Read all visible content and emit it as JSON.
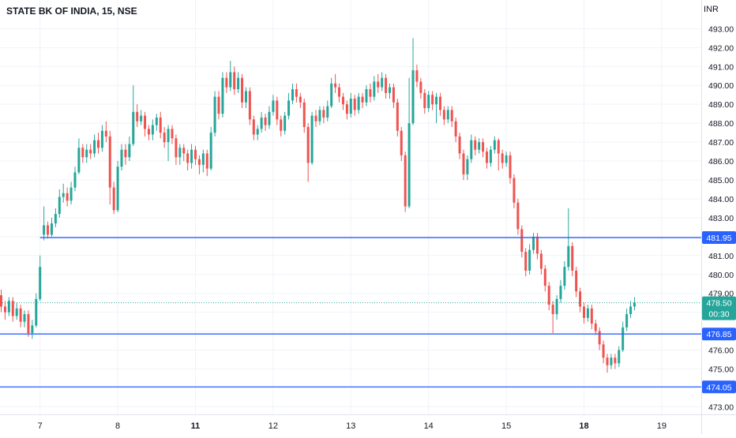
{
  "header": {
    "title": "STATE BK OF INDIA, 15, NSE",
    "currency": "INR"
  },
  "colors": {
    "up": "#26a69a",
    "down": "#ef5350",
    "level": "#2962ff",
    "last": "#26a69a"
  },
  "chart_data": {
    "type": "candlestick",
    "title": "STATE BK OF INDIA, 15, NSE",
    "ylabel": "INR",
    "ylim": [
      472.6,
      493.6
    ],
    "yticks": [
      473.0,
      474.0,
      475.0,
      476.0,
      477.0,
      478.0,
      479.0,
      480.0,
      481.0,
      482.0,
      483.0,
      484.0,
      485.0,
      486.0,
      487.0,
      488.0,
      489.0,
      490.0,
      491.0,
      492.0,
      493.0
    ],
    "xticks": [
      {
        "label": "7",
        "bar": 10,
        "bold": false
      },
      {
        "label": "8",
        "bar": 30,
        "bold": false
      },
      {
        "label": "11",
        "bar": 50,
        "bold": true
      },
      {
        "label": "12",
        "bar": 70,
        "bold": false
      },
      {
        "label": "13",
        "bar": 90,
        "bold": false
      },
      {
        "label": "14",
        "bar": 110,
        "bold": false
      },
      {
        "label": "15",
        "bar": 130,
        "bold": false
      },
      {
        "label": "18",
        "bar": 150,
        "bold": true
      },
      {
        "label": "19",
        "bar": 170,
        "bold": false
      }
    ],
    "levels": [
      {
        "value": 481.95,
        "label": "481.95",
        "x_start_bar": 10
      },
      {
        "value": 476.85,
        "label": "476.85",
        "x_start_bar": 0
      },
      {
        "value": 474.05,
        "label": "474.05",
        "x_start_bar": 0
      }
    ],
    "last_price": {
      "value": 478.5,
      "label": "478.50",
      "countdown": "00:30"
    },
    "candles": [
      [
        478.9,
        478.3,
        479.2,
        478.0
      ],
      [
        478.3,
        478.0,
        478.6,
        477.6
      ],
      [
        478.0,
        478.6,
        478.8,
        477.8
      ],
      [
        478.6,
        477.8,
        478.8,
        477.5
      ],
      [
        477.8,
        478.2,
        478.5,
        477.6
      ],
      [
        478.2,
        477.5,
        478.4,
        477.2
      ],
      [
        477.5,
        477.9,
        478.1,
        477.2
      ],
      [
        477.9,
        476.9,
        478.1,
        476.7
      ],
      [
        476.9,
        477.3,
        477.6,
        476.6
      ],
      [
        477.3,
        478.7,
        479.0,
        477.2
      ],
      [
        478.7,
        480.4,
        481.0,
        478.6
      ],
      [
        482.1,
        482.6,
        483.6,
        481.8
      ],
      [
        482.6,
        482.1,
        482.8,
        481.9
      ],
      [
        482.1,
        482.7,
        483.0,
        482.0
      ],
      [
        482.7,
        483.2,
        483.5,
        482.5
      ],
      [
        483.2,
        484.1,
        484.5,
        483.0
      ],
      [
        484.1,
        484.3,
        484.8,
        483.8
      ],
      [
        484.3,
        483.9,
        484.6,
        483.6
      ],
      [
        483.9,
        484.6,
        484.9,
        483.7
      ],
      [
        484.6,
        485.4,
        485.7,
        484.4
      ],
      [
        485.4,
        486.7,
        487.2,
        485.3
      ],
      [
        486.7,
        486.2,
        486.9,
        485.9
      ],
      [
        486.2,
        486.6,
        486.9,
        485.9
      ],
      [
        486.6,
        486.4,
        486.9,
        486.1
      ],
      [
        486.4,
        487.1,
        487.4,
        486.2
      ],
      [
        487.1,
        486.7,
        487.5,
        486.4
      ],
      [
        486.7,
        487.6,
        487.9,
        486.5
      ],
      [
        487.6,
        487.3,
        488.1,
        487.0
      ],
      [
        487.3,
        484.6,
        487.6,
        483.7
      ],
      [
        484.6,
        483.4,
        484.9,
        483.2
      ],
      [
        483.4,
        485.7,
        486.0,
        483.3
      ],
      [
        485.7,
        486.6,
        486.9,
        485.5
      ],
      [
        486.6,
        486.2,
        486.9,
        485.8
      ],
      [
        486.2,
        486.9,
        487.3,
        486.0
      ],
      [
        486.9,
        488.6,
        490.0,
        486.8
      ],
      [
        488.6,
        488.1,
        489.0,
        487.8
      ],
      [
        488.1,
        488.4,
        488.7,
        487.9
      ],
      [
        488.4,
        487.7,
        488.6,
        487.3
      ],
      [
        487.7,
        487.4,
        487.9,
        487.1
      ],
      [
        487.4,
        487.9,
        488.2,
        487.1
      ],
      [
        487.9,
        488.3,
        488.5,
        487.6
      ],
      [
        488.3,
        487.5,
        488.6,
        487.2
      ],
      [
        487.5,
        487.0,
        487.8,
        486.7
      ],
      [
        487.0,
        487.7,
        487.9,
        486.0
      ],
      [
        487.7,
        487.2,
        487.9,
        486.9
      ],
      [
        487.2,
        486.2,
        487.4,
        485.8
      ],
      [
        486.2,
        486.7,
        486.9,
        485.8
      ],
      [
        486.7,
        486.4,
        486.9,
        486.0
      ],
      [
        486.4,
        485.9,
        486.6,
        485.5
      ],
      [
        485.9,
        486.6,
        486.9,
        485.6
      ],
      [
        486.6,
        486.1,
        486.8,
        485.8
      ],
      [
        486.1,
        485.8,
        486.3,
        485.3
      ],
      [
        485.8,
        486.4,
        486.6,
        485.4
      ],
      [
        486.4,
        485.6,
        486.6,
        485.2
      ],
      [
        485.6,
        487.5,
        487.8,
        485.5
      ],
      [
        487.5,
        489.4,
        489.7,
        487.3
      ],
      [
        489.4,
        488.5,
        489.7,
        488.2
      ],
      [
        488.5,
        490.4,
        490.7,
        488.3
      ],
      [
        490.4,
        489.9,
        490.7,
        489.6
      ],
      [
        489.9,
        490.7,
        491.3,
        489.7
      ],
      [
        490.7,
        489.8,
        491.0,
        489.5
      ],
      [
        489.8,
        490.4,
        490.7,
        489.6
      ],
      [
        490.4,
        489.1,
        490.6,
        488.8
      ],
      [
        489.1,
        489.7,
        489.9,
        488.8
      ],
      [
        489.7,
        488.2,
        489.9,
        487.9
      ],
      [
        488.2,
        487.4,
        488.4,
        487.1
      ],
      [
        487.4,
        487.7,
        487.9,
        487.1
      ],
      [
        487.7,
        488.3,
        488.6,
        487.5
      ],
      [
        488.3,
        487.9,
        488.5,
        487.6
      ],
      [
        487.9,
        488.6,
        488.9,
        487.7
      ],
      [
        488.6,
        489.2,
        489.5,
        488.4
      ],
      [
        489.2,
        488.2,
        489.4,
        487.9
      ],
      [
        488.2,
        487.6,
        488.4,
        487.3
      ],
      [
        487.6,
        488.4,
        488.6,
        487.4
      ],
      [
        488.4,
        489.2,
        489.6,
        488.2
      ],
      [
        489.2,
        489.8,
        490.1,
        489.0
      ],
      [
        489.8,
        489.4,
        490.1,
        489.1
      ],
      [
        489.4,
        489.1,
        489.6,
        488.8
      ],
      [
        489.1,
        487.8,
        489.3,
        487.5
      ],
      [
        487.8,
        485.9,
        488.0,
        484.9
      ],
      [
        485.9,
        488.4,
        488.6,
        485.8
      ],
      [
        488.4,
        488.1,
        488.7,
        487.8
      ],
      [
        488.1,
        488.7,
        488.9,
        487.9
      ],
      [
        488.7,
        488.3,
        488.9,
        488.0
      ],
      [
        488.3,
        488.9,
        489.2,
        488.1
      ],
      [
        488.9,
        490.1,
        490.4,
        488.8
      ],
      [
        490.1,
        489.9,
        490.6,
        489.6
      ],
      [
        489.9,
        489.4,
        490.1,
        489.1
      ],
      [
        489.4,
        489.0,
        489.6,
        488.7
      ],
      [
        489.0,
        488.5,
        489.2,
        488.2
      ],
      [
        488.5,
        489.3,
        489.6,
        488.3
      ],
      [
        489.3,
        488.7,
        489.5,
        488.4
      ],
      [
        488.7,
        489.4,
        489.6,
        488.5
      ],
      [
        489.4,
        489.1,
        489.6,
        488.8
      ],
      [
        489.1,
        489.8,
        490.0,
        488.9
      ],
      [
        489.8,
        489.4,
        490.1,
        489.1
      ],
      [
        489.4,
        490.2,
        490.5,
        489.2
      ],
      [
        490.2,
        489.9,
        490.6,
        489.6
      ],
      [
        489.9,
        490.4,
        490.7,
        489.7
      ],
      [
        490.4,
        489.6,
        490.6,
        489.3
      ],
      [
        489.6,
        489.9,
        490.1,
        489.3
      ],
      [
        489.9,
        489.1,
        490.1,
        488.8
      ],
      [
        489.1,
        487.6,
        489.3,
        487.3
      ],
      [
        487.6,
        486.3,
        487.8,
        486.0
      ],
      [
        486.3,
        483.6,
        486.5,
        483.3
      ],
      [
        483.6,
        488.0,
        490.4,
        483.5
      ],
      [
        488.0,
        490.8,
        492.5,
        487.9
      ],
      [
        490.8,
        490.2,
        491.1,
        489.9
      ],
      [
        490.2,
        489.6,
        490.4,
        489.3
      ],
      [
        489.6,
        488.8,
        489.8,
        488.5
      ],
      [
        488.8,
        489.5,
        489.7,
        488.6
      ],
      [
        489.5,
        489.0,
        489.7,
        488.7
      ],
      [
        489.0,
        489.4,
        489.6,
        488.0
      ],
      [
        489.4,
        488.7,
        489.6,
        488.4
      ],
      [
        488.7,
        488.2,
        488.9,
        487.9
      ],
      [
        488.2,
        488.7,
        488.9,
        488.0
      ],
      [
        488.7,
        488.1,
        488.9,
        487.8
      ],
      [
        488.1,
        487.3,
        488.3,
        487.0
      ],
      [
        487.3,
        486.4,
        487.5,
        486.1
      ],
      [
        486.4,
        485.3,
        486.6,
        485.0
      ],
      [
        485.3,
        486.1,
        486.3,
        485.0
      ],
      [
        486.1,
        487.1,
        487.4,
        485.9
      ],
      [
        487.1,
        486.6,
        487.3,
        486.3
      ],
      [
        486.6,
        487.0,
        487.2,
        486.4
      ],
      [
        487.0,
        486.5,
        487.2,
        486.2
      ],
      [
        486.5,
        485.9,
        486.7,
        485.6
      ],
      [
        485.9,
        486.6,
        486.8,
        485.7
      ],
      [
        486.6,
        487.1,
        487.3,
        486.4
      ],
      [
        487.1,
        486.4,
        487.2,
        485.5
      ],
      [
        486.4,
        485.9,
        486.6,
        485.6
      ],
      [
        485.9,
        486.3,
        486.5,
        485.7
      ],
      [
        486.3,
        485.1,
        486.5,
        484.8
      ],
      [
        485.1,
        483.8,
        485.3,
        483.5
      ],
      [
        483.8,
        482.4,
        484.0,
        482.1
      ],
      [
        482.4,
        481.2,
        482.6,
        480.9
      ],
      [
        481.2,
        480.2,
        481.4,
        479.9
      ],
      [
        480.2,
        481.3,
        481.6,
        480.0
      ],
      [
        481.3,
        482.0,
        482.2,
        481.1
      ],
      [
        482.0,
        481.1,
        482.2,
        480.8
      ],
      [
        481.1,
        480.3,
        481.3,
        480.0
      ],
      [
        480.3,
        479.4,
        480.5,
        479.1
      ],
      [
        479.4,
        478.4,
        479.6,
        478.1
      ],
      [
        478.4,
        477.9,
        478.6,
        476.9
      ],
      [
        477.9,
        478.7,
        478.9,
        477.6
      ],
      [
        478.7,
        479.4,
        479.7,
        478.5
      ],
      [
        479.4,
        480.4,
        480.7,
        479.2
      ],
      [
        480.4,
        481.5,
        483.5,
        480.2
      ],
      [
        481.5,
        480.2,
        481.7,
        479.9
      ],
      [
        480.2,
        479.1,
        480.4,
        478.8
      ],
      [
        479.1,
        478.3,
        479.3,
        478.0
      ],
      [
        478.3,
        477.7,
        478.5,
        477.4
      ],
      [
        477.7,
        478.2,
        478.4,
        477.5
      ],
      [
        478.2,
        477.4,
        478.4,
        477.1
      ],
      [
        477.4,
        477.0,
        477.6,
        476.8
      ],
      [
        477.0,
        476.3,
        477.2,
        476.0
      ],
      [
        476.3,
        475.6,
        476.5,
        475.3
      ],
      [
        475.6,
        475.2,
        475.8,
        474.8
      ],
      [
        475.2,
        475.6,
        475.8,
        475.0
      ],
      [
        475.6,
        475.3,
        475.8,
        475.0
      ],
      [
        475.3,
        476.0,
        476.2,
        475.1
      ],
      [
        476.0,
        477.2,
        477.5,
        475.9
      ],
      [
        477.2,
        477.9,
        478.2,
        477.0
      ],
      [
        477.9,
        478.3,
        478.6,
        477.7
      ],
      [
        478.3,
        478.5,
        478.8,
        478.1
      ]
    ]
  }
}
